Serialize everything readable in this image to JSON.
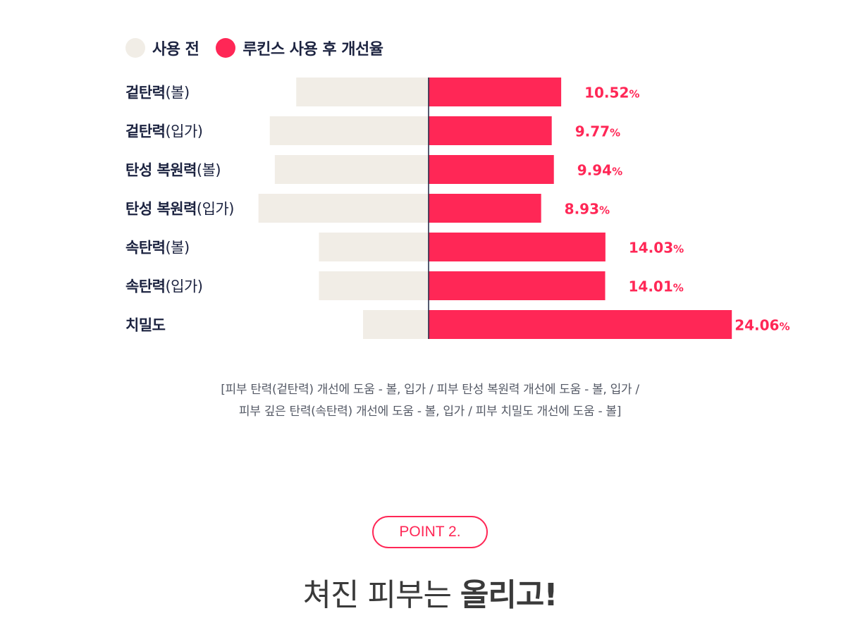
{
  "legend": {
    "before": {
      "label": "사용 전",
      "color": "#f1ede6"
    },
    "after": {
      "label": "루킨스 사용 후 개선율",
      "color": "#ff2756"
    }
  },
  "chart_data": {
    "type": "bar",
    "categories": [
      {
        "main": "겉탄력",
        "paren": "(볼)"
      },
      {
        "main": "겉탄력",
        "paren": "(입가)"
      },
      {
        "main": "탄성 복원력",
        "paren": "(볼)"
      },
      {
        "main": "탄성 복원력",
        "paren": "(입가)"
      },
      {
        "main": "속탄력",
        "paren": "(볼)"
      },
      {
        "main": "속탄력",
        "paren": "(입가)"
      },
      {
        "main": "치밀도",
        "paren": ""
      }
    ],
    "series": [
      {
        "name": "사용 전",
        "values": [
          10.5,
          12.6,
          12.2,
          13.5,
          8.7,
          8.7,
          5.2
        ],
        "color": "#f1ede6"
      },
      {
        "name": "루킨스 사용 후 개선율",
        "values": [
          10.52,
          9.77,
          9.94,
          8.93,
          14.03,
          14.01,
          24.06
        ],
        "color": "#ff2756"
      }
    ],
    "value_labels": [
      "10.52",
      "9.77",
      "9.94",
      "8.93",
      "14.03",
      "14.01",
      "24.06"
    ],
    "unit": "%",
    "orientation": "horizontal-diverging",
    "xlim": [
      -13.5,
      24.06
    ]
  },
  "notes": {
    "line1": "[피부 탄력(겉탄력) 개선에 도움 - 볼, 입가 / 피부 탄성 복원력 개선에 도움 - 볼, 입가 /",
    "line2": "피부 깊은 탄력(속탄력) 개선에 도움 - 볼, 입가 / 피부 치밀도 개선에 도움 - 볼]"
  },
  "point": {
    "label": "POINT 2."
  },
  "headline": {
    "light": "쳐진 피부는 ",
    "bold": "올리고!"
  }
}
